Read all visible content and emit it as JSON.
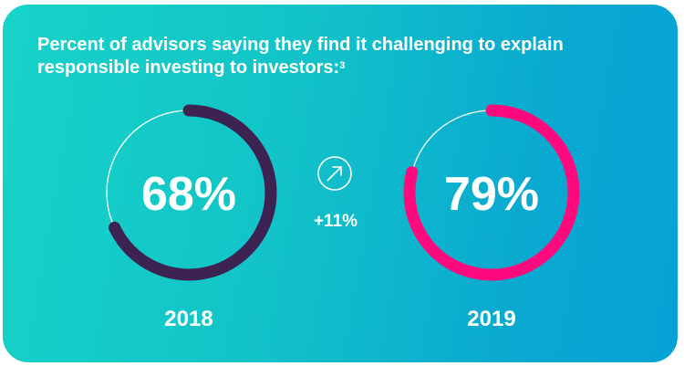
{
  "title": "Percent of advisors saying they find it challenging to explain responsible investing to investors:",
  "title_footnote": "3",
  "change": {
    "label": "+11%",
    "icon": "arrow-up-right-icon"
  },
  "colors": {
    "background_start": "#17d3c9",
    "background_end": "#06a2d6",
    "ring_2018": "#3d2352",
    "ring_2019": "#ff0a7e",
    "track": "#ffffff",
    "text": "#ffffff"
  },
  "chart_data": {
    "type": "pie",
    "variant": "donut",
    "title": "Percent of advisors saying they find it challenging to explain responsible investing to investors:",
    "categories": [
      "2018",
      "2019"
    ],
    "values": [
      68,
      79
    ],
    "value_labels": [
      "68%",
      "79%"
    ],
    "unit": "%",
    "max": 100,
    "change_label": "+11%"
  }
}
